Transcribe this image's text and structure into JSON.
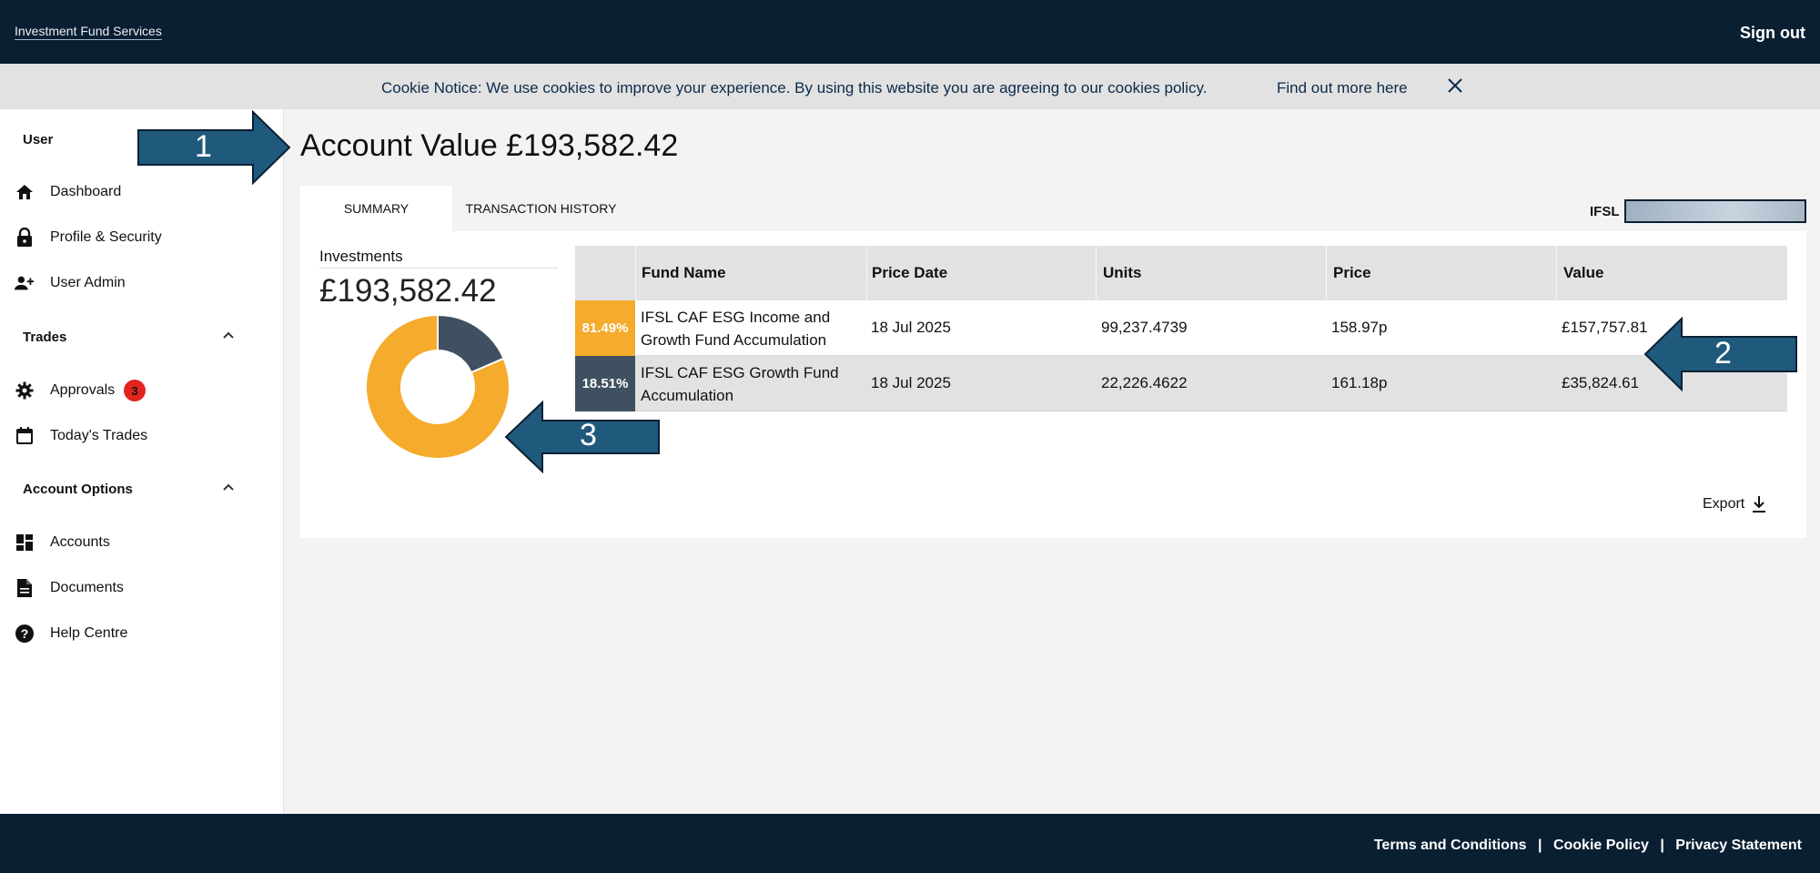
{
  "header": {
    "brand": "Investment Fund Services",
    "sign_out": "Sign out"
  },
  "cookie": {
    "text": "Cookie Notice: We use cookies to improve your experience. By using this website you are agreeing to our cookies policy.",
    "link": "Find out more here",
    "close_icon": "close-icon"
  },
  "sidebar": {
    "user_section": "User",
    "user_items": [
      {
        "label": "Dashboard",
        "icon": "home-icon"
      },
      {
        "label": "Profile & Security",
        "icon": "lock-icon"
      },
      {
        "label": "User Admin",
        "icon": "user-add-icon"
      }
    ],
    "trades_section": "Trades",
    "trades_items": [
      {
        "label": "Approvals",
        "icon": "gear-icon",
        "badge": "3"
      },
      {
        "label": "Today's Trades",
        "icon": "calendar-icon"
      }
    ],
    "account_section": "Account Options",
    "account_items": [
      {
        "label": "Accounts",
        "icon": "dashboard-icon"
      },
      {
        "label": "Documents",
        "icon": "document-icon"
      },
      {
        "label": "Help Centre",
        "icon": "help-icon"
      }
    ]
  },
  "main": {
    "title": "Account Value £193,582.42",
    "tabs": [
      {
        "label": "SUMMARY",
        "active": true
      },
      {
        "label": "TRANSACTION HISTORY",
        "active": false
      }
    ],
    "account_selector_label": "IFSL",
    "investments_label": "Investments",
    "investments_total": "£193,582.42",
    "export_label": "Export",
    "table": {
      "headers": [
        "Fund Name",
        "Price Date",
        "Units",
        "Price",
        "Value"
      ],
      "rows": [
        {
          "pct": "81.49%",
          "fund": "IFSL CAF ESG Income and Growth Fund Accumulation",
          "date": "18 Jul 2025",
          "units": "99,237.4739",
          "price": "158.97p",
          "value": "£157,757.81",
          "color": "#f5ab2b"
        },
        {
          "pct": "18.51%",
          "fund": "IFSL CAF ESG Growth Fund Accumulation",
          "date": "18 Jul 2025",
          "units": "22,226.4622",
          "price": "161.18p",
          "value": "£35,824.61",
          "color": "#3f5160"
        }
      ]
    }
  },
  "chart_data": {
    "type": "pie",
    "categories": [
      "IFSL CAF ESG Income and Growth Fund Accumulation",
      "IFSL CAF ESG Growth Fund Accumulation"
    ],
    "values": [
      81.49,
      18.51
    ],
    "colors": [
      "#f5ab2b",
      "#3f5160"
    ],
    "donut": true
  },
  "callouts": [
    "1",
    "2",
    "3"
  ],
  "footer": {
    "links": [
      "Terms and Conditions",
      "Cookie Policy",
      "Privacy Statement"
    ],
    "separator": "|"
  },
  "colors": {
    "navy": "#0b1f33",
    "callout": "#1f5a7d",
    "badge": "#e3231d"
  }
}
